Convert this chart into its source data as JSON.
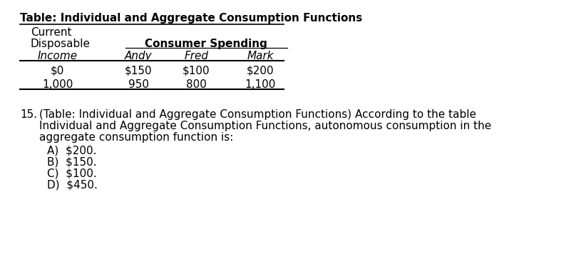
{
  "title": "Table: Individual and Aggregate Consumption Functions",
  "header_row1_col1": "Current",
  "header_row2_col1": "Disposable",
  "header_consumer_spending": "Consumer Spending",
  "header_row3_col1": "Income",
  "header_andy": "Andy",
  "header_fred": "Fred",
  "header_mark": "Mark",
  "data_rows": [
    [
      "$0",
      "$150",
      "$100",
      "$200"
    ],
    [
      "1,000",
      "950",
      "800",
      "1,100"
    ]
  ],
  "question_number": "15.",
  "question_text": "(Table: Individual and Aggregate Consumption Functions) According to the table",
  "question_text2": "Individual and Aggregate Consumption Functions, autonomous consumption in the",
  "question_text3": "aggregate consumption function is:",
  "answer_A": "A)  $200.",
  "answer_B": "B)  $150.",
  "answer_C": "C)  $100.",
  "answer_D": "D)  $450.",
  "bg_color": "#ffffff",
  "text_color": "#000000",
  "font_size_title": 11,
  "font_size_body": 11
}
